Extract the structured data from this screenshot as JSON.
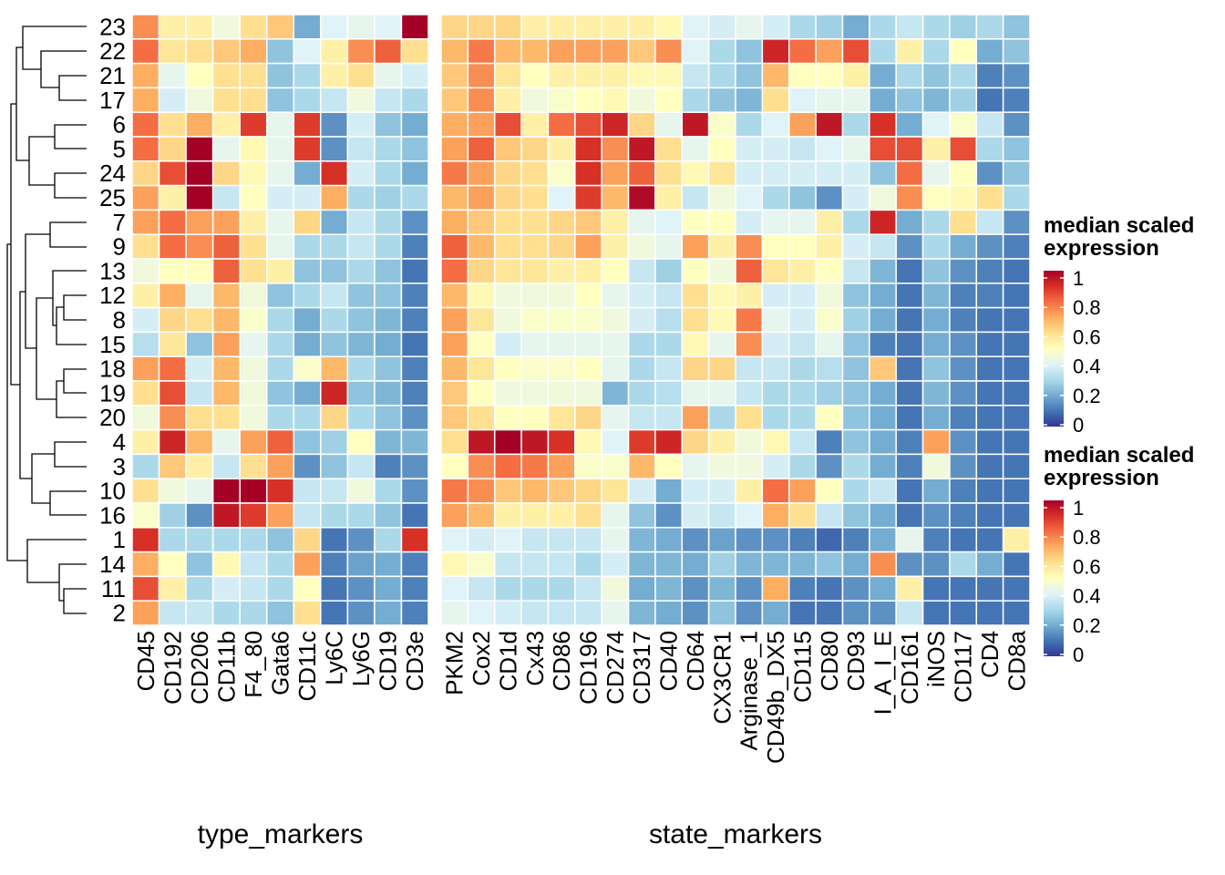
{
  "chart_data": {
    "type": "heatmap",
    "rows": [
      "23",
      "22",
      "21",
      "17",
      "6",
      "5",
      "24",
      "25",
      "7",
      "9",
      "13",
      "12",
      "8",
      "15",
      "18",
      "19",
      "20",
      "4",
      "3",
      "10",
      "16",
      "1",
      "14",
      "11",
      "2"
    ],
    "colors": [
      "#313695",
      "#4575b4",
      "#74add1",
      "#abd9e9",
      "#e0f3f8",
      "#ffffbf",
      "#fee090",
      "#fdae61",
      "#f46d43",
      "#d73027",
      "#a50026"
    ],
    "clim": [
      0,
      1
    ],
    "panels": [
      {
        "title": "type_markers",
        "columns": [
          "CD45",
          "CD192",
          "CD206",
          "CD11b",
          "F4_80",
          "Gata6",
          "CD11c",
          "Ly6C",
          "Ly6G",
          "CD19",
          "CD3e"
        ],
        "values": [
          [
            0.75,
            0.55,
            0.55,
            0.45,
            0.6,
            0.65,
            0.2,
            0.4,
            0.42,
            0.4,
            1.0
          ],
          [
            0.8,
            0.58,
            0.6,
            0.65,
            0.7,
            0.25,
            0.4,
            0.55,
            0.75,
            0.82,
            0.6
          ],
          [
            0.7,
            0.42,
            0.5,
            0.6,
            0.6,
            0.25,
            0.3,
            0.55,
            0.6,
            0.42,
            0.38
          ],
          [
            0.7,
            0.38,
            0.45,
            0.6,
            0.6,
            0.25,
            0.3,
            0.35,
            0.45,
            0.35,
            0.3
          ],
          [
            0.8,
            0.6,
            0.7,
            0.55,
            0.88,
            0.42,
            0.88,
            0.15,
            0.38,
            0.25,
            0.2
          ],
          [
            0.8,
            0.62,
            1.0,
            0.42,
            0.52,
            0.42,
            0.88,
            0.15,
            0.35,
            0.3,
            0.25
          ],
          [
            0.62,
            0.85,
            1.0,
            0.62,
            0.52,
            0.42,
            0.2,
            0.9,
            0.38,
            0.3,
            0.2
          ],
          [
            0.72,
            0.55,
            1.0,
            0.35,
            0.5,
            0.38,
            0.38,
            0.7,
            0.3,
            0.28,
            0.3
          ],
          [
            0.72,
            0.8,
            0.72,
            0.72,
            0.55,
            0.42,
            0.62,
            0.2,
            0.35,
            0.3,
            0.15
          ],
          [
            0.6,
            0.8,
            0.75,
            0.82,
            0.6,
            0.42,
            0.3,
            0.3,
            0.35,
            0.3,
            0.12
          ],
          [
            0.45,
            0.5,
            0.5,
            0.82,
            0.6,
            0.55,
            0.25,
            0.25,
            0.3,
            0.25,
            0.1
          ],
          [
            0.55,
            0.7,
            0.42,
            0.68,
            0.45,
            0.25,
            0.3,
            0.35,
            0.25,
            0.25,
            0.12
          ],
          [
            0.38,
            0.62,
            0.6,
            0.68,
            0.48,
            0.3,
            0.2,
            0.3,
            0.25,
            0.22,
            0.12
          ],
          [
            0.32,
            0.58,
            0.25,
            0.72,
            0.42,
            0.3,
            0.2,
            0.25,
            0.22,
            0.2,
            0.1
          ],
          [
            0.72,
            0.8,
            0.38,
            0.68,
            0.45,
            0.3,
            0.48,
            0.68,
            0.3,
            0.25,
            0.12
          ],
          [
            0.6,
            0.85,
            0.35,
            0.68,
            0.45,
            0.25,
            0.2,
            0.92,
            0.25,
            0.22,
            0.12
          ],
          [
            0.45,
            0.75,
            0.6,
            0.6,
            0.45,
            0.3,
            0.3,
            0.62,
            0.3,
            0.25,
            0.15
          ],
          [
            0.55,
            0.92,
            0.68,
            0.42,
            0.72,
            0.82,
            0.25,
            0.28,
            0.5,
            0.22,
            0.22
          ],
          [
            0.3,
            0.65,
            0.55,
            0.35,
            0.6,
            0.72,
            0.15,
            0.25,
            0.35,
            0.12,
            0.15
          ],
          [
            0.6,
            0.45,
            0.42,
            1.0,
            1.0,
            0.9,
            0.35,
            0.35,
            0.45,
            0.3,
            0.15
          ],
          [
            0.48,
            0.28,
            0.15,
            0.95,
            0.88,
            0.72,
            0.35,
            0.3,
            0.3,
            0.25,
            0.1
          ],
          [
            0.9,
            0.3,
            0.3,
            0.3,
            0.3,
            0.25,
            0.62,
            0.1,
            0.15,
            0.3,
            0.9
          ],
          [
            0.7,
            0.5,
            0.25,
            0.52,
            0.35,
            0.3,
            0.72,
            0.12,
            0.18,
            0.2,
            0.12
          ],
          [
            0.85,
            0.55,
            0.3,
            0.38,
            0.35,
            0.3,
            0.5,
            0.1,
            0.15,
            0.2,
            0.12
          ],
          [
            0.72,
            0.35,
            0.35,
            0.3,
            0.3,
            0.25,
            0.6,
            0.1,
            0.15,
            0.2,
            0.12
          ]
        ]
      },
      {
        "title": "state_markers",
        "columns": [
          "PKM2",
          "Cox2",
          "CD1d",
          "Cx43",
          "CD86",
          "CD196",
          "CD274",
          "CD317",
          "CD40",
          "CD64",
          "CX3CR1",
          "Arginase_1",
          "CD49b_DX5",
          "CD115",
          "CD80",
          "CD93",
          "I_A_I_E",
          "CD161",
          "iNOS",
          "CD117",
          "CD4",
          "CD8a"
        ],
        "values": [
          [
            0.62,
            0.62,
            0.62,
            0.55,
            0.55,
            0.55,
            0.55,
            0.55,
            0.52,
            0.4,
            0.38,
            0.42,
            0.38,
            0.3,
            0.28,
            0.2,
            0.3,
            0.35,
            0.3,
            0.28,
            0.3,
            0.25
          ],
          [
            0.68,
            0.78,
            0.68,
            0.68,
            0.72,
            0.72,
            0.72,
            0.65,
            0.75,
            0.4,
            0.3,
            0.25,
            0.92,
            0.8,
            0.72,
            0.85,
            0.3,
            0.55,
            0.3,
            0.5,
            0.2,
            0.25
          ],
          [
            0.65,
            0.75,
            0.58,
            0.5,
            0.55,
            0.55,
            0.55,
            0.52,
            0.52,
            0.35,
            0.3,
            0.25,
            0.68,
            0.5,
            0.5,
            0.55,
            0.2,
            0.3,
            0.25,
            0.3,
            0.12,
            0.15
          ],
          [
            0.65,
            0.75,
            0.55,
            0.45,
            0.48,
            0.5,
            0.52,
            0.45,
            0.5,
            0.3,
            0.25,
            0.22,
            0.6,
            0.4,
            0.42,
            0.42,
            0.2,
            0.25,
            0.22,
            0.28,
            0.1,
            0.12
          ],
          [
            0.7,
            0.72,
            0.85,
            0.55,
            0.8,
            0.85,
            0.92,
            0.62,
            0.42,
            0.95,
            0.48,
            0.3,
            0.4,
            0.72,
            0.95,
            0.3,
            0.9,
            0.2,
            0.4,
            0.48,
            0.35,
            0.15
          ],
          [
            0.72,
            0.82,
            0.65,
            0.62,
            0.55,
            0.9,
            0.75,
            0.95,
            0.6,
            0.42,
            0.5,
            0.38,
            0.38,
            0.35,
            0.4,
            0.42,
            0.85,
            0.85,
            0.55,
            0.85,
            0.3,
            0.25
          ],
          [
            0.78,
            0.72,
            0.62,
            0.6,
            0.48,
            0.9,
            0.72,
            0.82,
            0.6,
            0.52,
            0.58,
            0.38,
            0.38,
            0.38,
            0.38,
            0.38,
            0.25,
            0.8,
            0.42,
            0.5,
            0.15,
            0.25
          ],
          [
            0.68,
            0.72,
            0.62,
            0.6,
            0.4,
            0.88,
            0.68,
            0.98,
            0.55,
            0.35,
            0.45,
            0.4,
            0.3,
            0.25,
            0.15,
            0.38,
            0.45,
            0.75,
            0.5,
            0.52,
            0.6,
            0.3
          ],
          [
            0.7,
            0.65,
            0.6,
            0.6,
            0.62,
            0.65,
            0.55,
            0.42,
            0.4,
            0.5,
            0.5,
            0.38,
            0.42,
            0.42,
            0.55,
            0.3,
            0.92,
            0.2,
            0.3,
            0.6,
            0.35,
            0.15
          ],
          [
            0.82,
            0.68,
            0.6,
            0.6,
            0.62,
            0.72,
            0.55,
            0.45,
            0.42,
            0.72,
            0.55,
            0.75,
            0.5,
            0.5,
            0.55,
            0.38,
            0.35,
            0.15,
            0.3,
            0.2,
            0.15,
            0.12
          ],
          [
            0.8,
            0.62,
            0.58,
            0.58,
            0.55,
            0.55,
            0.5,
            0.35,
            0.28,
            0.5,
            0.45,
            0.82,
            0.58,
            0.55,
            0.5,
            0.35,
            0.22,
            0.1,
            0.25,
            0.15,
            0.12,
            0.1
          ],
          [
            0.68,
            0.52,
            0.45,
            0.45,
            0.45,
            0.5,
            0.42,
            0.38,
            0.35,
            0.6,
            0.52,
            0.55,
            0.38,
            0.38,
            0.45,
            0.25,
            0.2,
            0.1,
            0.22,
            0.12,
            0.12,
            0.1
          ],
          [
            0.72,
            0.58,
            0.45,
            0.48,
            0.48,
            0.48,
            0.45,
            0.38,
            0.32,
            0.6,
            0.52,
            0.78,
            0.42,
            0.38,
            0.48,
            0.28,
            0.2,
            0.1,
            0.2,
            0.12,
            0.1,
            0.1
          ],
          [
            0.72,
            0.5,
            0.38,
            0.42,
            0.42,
            0.42,
            0.42,
            0.3,
            0.3,
            0.52,
            0.42,
            0.75,
            0.38,
            0.35,
            0.42,
            0.25,
            0.12,
            0.1,
            0.2,
            0.15,
            0.1,
            0.1
          ],
          [
            0.68,
            0.58,
            0.5,
            0.48,
            0.48,
            0.5,
            0.42,
            0.3,
            0.35,
            0.62,
            0.62,
            0.35,
            0.35,
            0.3,
            0.32,
            0.25,
            0.65,
            0.1,
            0.25,
            0.15,
            0.1,
            0.1
          ],
          [
            0.65,
            0.5,
            0.45,
            0.45,
            0.45,
            0.45,
            0.22,
            0.3,
            0.32,
            0.42,
            0.42,
            0.35,
            0.3,
            0.3,
            0.28,
            0.25,
            0.2,
            0.1,
            0.22,
            0.15,
            0.1,
            0.1
          ],
          [
            0.65,
            0.6,
            0.5,
            0.5,
            0.58,
            0.62,
            0.42,
            0.35,
            0.35,
            0.72,
            0.3,
            0.6,
            0.3,
            0.3,
            0.5,
            0.25,
            0.2,
            0.1,
            0.2,
            0.12,
            0.1,
            0.1
          ],
          [
            0.6,
            0.95,
            1.0,
            0.95,
            0.9,
            0.52,
            0.4,
            0.88,
            0.92,
            0.62,
            0.55,
            0.45,
            0.52,
            0.35,
            0.12,
            0.25,
            0.2,
            0.12,
            0.72,
            0.15,
            0.1,
            0.1
          ],
          [
            0.5,
            0.75,
            0.8,
            0.78,
            0.72,
            0.48,
            0.48,
            0.68,
            0.5,
            0.42,
            0.45,
            0.45,
            0.38,
            0.3,
            0.15,
            0.3,
            0.2,
            0.12,
            0.45,
            0.15,
            0.1,
            0.1
          ],
          [
            0.78,
            0.75,
            0.65,
            0.68,
            0.65,
            0.62,
            0.58,
            0.38,
            0.2,
            0.38,
            0.38,
            0.55,
            0.8,
            0.72,
            0.5,
            0.3,
            0.35,
            0.1,
            0.2,
            0.12,
            0.1,
            0.1
          ],
          [
            0.72,
            0.68,
            0.55,
            0.55,
            0.55,
            0.6,
            0.42,
            0.25,
            0.15,
            0.38,
            0.35,
            0.4,
            0.7,
            0.6,
            0.35,
            0.25,
            0.2,
            0.1,
            0.15,
            0.12,
            0.1,
            0.1
          ],
          [
            0.4,
            0.38,
            0.4,
            0.35,
            0.35,
            0.35,
            0.42,
            0.22,
            0.2,
            0.15,
            0.18,
            0.15,
            0.15,
            0.12,
            0.08,
            0.12,
            0.2,
            0.42,
            0.12,
            0.1,
            0.1,
            0.55
          ],
          [
            0.52,
            0.48,
            0.35,
            0.35,
            0.35,
            0.3,
            0.38,
            0.22,
            0.22,
            0.2,
            0.28,
            0.22,
            0.22,
            0.22,
            0.25,
            0.2,
            0.75,
            0.15,
            0.15,
            0.3,
            0.2,
            0.1
          ],
          [
            0.4,
            0.35,
            0.3,
            0.3,
            0.3,
            0.35,
            0.45,
            0.2,
            0.22,
            0.15,
            0.22,
            0.15,
            0.7,
            0.12,
            0.1,
            0.15,
            0.2,
            0.55,
            0.1,
            0.1,
            0.1,
            0.1
          ],
          [
            0.42,
            0.4,
            0.38,
            0.35,
            0.35,
            0.35,
            0.42,
            0.22,
            0.2,
            0.15,
            0.25,
            0.15,
            0.2,
            0.1,
            0.1,
            0.15,
            0.15,
            0.35,
            0.1,
            0.1,
            0.1,
            0.1
          ]
        ]
      }
    ],
    "legends": [
      {
        "title": [
          "median scaled",
          "expression"
        ],
        "ticks": [
          0,
          0.2,
          0.4,
          0.6,
          0.8,
          1
        ]
      },
      {
        "title": [
          "median scaled",
          "expression"
        ],
        "ticks": [
          0,
          0.2,
          0.4,
          0.6,
          0.8,
          1
        ]
      }
    ]
  }
}
